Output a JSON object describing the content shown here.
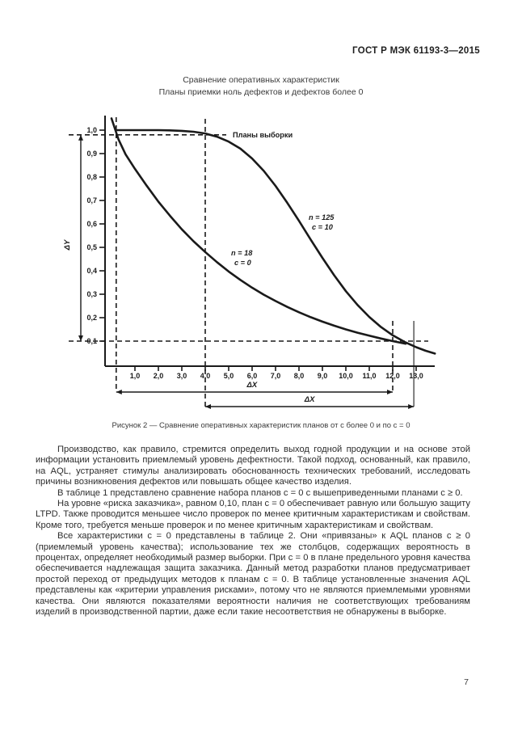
{
  "page": {
    "header": "ГОСТ Р МЭК 61193-3—2015",
    "page_number": "7"
  },
  "colors": {
    "ink": "#1a1a1a",
    "text": "#2d2d2d"
  },
  "figure": {
    "title_line1": "Сравнение оперативных характеристик",
    "title_line2": "Планы приемки ноль дефектов и дефектов более 0",
    "caption": "Рисунок 2 — Сравнение оперативных характеристик планов от с более 0 и по  с = 0"
  },
  "chart_data": {
    "type": "line",
    "title": "Сравнение оперативных характеристик. Планы приемки ноль дефектов и дефектов более 0",
    "xlabel": "ΔX",
    "ylabel": "ΔY",
    "xlim": [
      0,
      13.8
    ],
    "ylim": [
      0,
      1.05
    ],
    "grid": false,
    "x_tick_values": [
      1,
      2,
      3,
      4,
      5,
      6,
      7,
      8,
      9,
      10,
      11,
      12,
      13
    ],
    "x_tick_labels": [
      "1,0",
      "2,0",
      "3,0",
      "4,0",
      "5,0",
      "6,0",
      "7,0",
      "8,0",
      "9,0",
      "10,0",
      "11,0",
      "12,0",
      "13,0"
    ],
    "y_tick_values": [
      1.0,
      0.9,
      0.8,
      0.7,
      0.6,
      0.5,
      0.4,
      0.3,
      0.2,
      0.1
    ],
    "y_tick_labels": [
      "1,0",
      "0,9",
      "0,8",
      "0,7",
      "0,6",
      "0,5",
      "0,4",
      "0,3",
      "0,2",
      "0,1"
    ],
    "annotation_sampling_plans": "Планы выборки",
    "series": [
      {
        "name": "n = 18, c = 0",
        "label_lines": [
          "n = 18",
          "c = 0"
        ],
        "points": [
          [
            0,
            1.05
          ],
          [
            0.3,
            0.96
          ],
          [
            0.6,
            0.897
          ],
          [
            1,
            0.835
          ],
          [
            1.5,
            0.763
          ],
          [
            2,
            0.695
          ],
          [
            2.5,
            0.634
          ],
          [
            3,
            0.577
          ],
          [
            3.5,
            0.526
          ],
          [
            4,
            0.48
          ],
          [
            4.5,
            0.437
          ],
          [
            5,
            0.397
          ],
          [
            5.5,
            0.361
          ],
          [
            6,
            0.328
          ],
          [
            6.5,
            0.298
          ],
          [
            7,
            0.271
          ],
          [
            7.5,
            0.246
          ],
          [
            8,
            0.223
          ],
          [
            8.5,
            0.202
          ],
          [
            9,
            0.183
          ],
          [
            9.5,
            0.166
          ],
          [
            10,
            0.15
          ],
          [
            10.5,
            0.136
          ],
          [
            11,
            0.123
          ],
          [
            11.5,
            0.111
          ],
          [
            12,
            0.1
          ],
          [
            12.55,
            0.089
          ]
        ]
      },
      {
        "name": "n = 125, c = 10",
        "label_lines": [
          "n = 125",
          "c = 10"
        ],
        "points": [
          [
            0.25,
            1.0
          ],
          [
            1,
            1.0
          ],
          [
            2,
            1.0
          ],
          [
            2.5,
            0.999
          ],
          [
            3,
            0.997
          ],
          [
            3.5,
            0.993
          ],
          [
            4,
            0.986
          ],
          [
            4.5,
            0.972
          ],
          [
            5,
            0.951
          ],
          [
            5.5,
            0.921
          ],
          [
            6,
            0.879
          ],
          [
            6.5,
            0.826
          ],
          [
            7,
            0.762
          ],
          [
            7.5,
            0.69
          ],
          [
            8,
            0.613
          ],
          [
            8.5,
            0.533
          ],
          [
            9,
            0.455
          ],
          [
            9.5,
            0.381
          ],
          [
            10,
            0.313
          ],
          [
            10.5,
            0.254
          ],
          [
            11,
            0.203
          ],
          [
            11.5,
            0.16
          ],
          [
            12,
            0.125
          ],
          [
            12.5,
            0.097
          ],
          [
            13,
            0.074
          ],
          [
            13.4,
            0.059
          ],
          [
            13.8,
            0.047
          ]
        ]
      }
    ],
    "reference_lines": {
      "v_dashed": [
        0.2,
        4.0,
        12.0
      ],
      "v_solid": [
        12.9
      ],
      "h_dashed": [
        0.98,
        0.1
      ]
    },
    "dim_arrows": [
      {
        "label": "ΔX",
        "from": 0.2,
        "to": 12.0
      },
      {
        "label": "ΔX",
        "from": 4.0,
        "to": 12.9
      },
      {
        "label": "ΔY",
        "from": 0.98,
        "to": 0.1
      }
    ]
  },
  "body": {
    "paragraphs": [
      "Производство, как правило, стремится определить выход годной продукции и на основе этой информации установить приемлемый уровень дефектности. Такой подход, основанный, как правило, на AQL, устраняет стимулы анализировать обоснованность технических требований, исследовать причины возникновения дефектов или повышать общее качество изделия.",
      "В таблице 1 представлено сравнение набора планов c = 0 с вышеприведенными планами c ≥ 0.",
      "На уровне «риска заказчика», равном 0,10, план c = 0 обеспечивает равную или большую защиту LTPD. Также проводится меньшее число проверок по менее критичным характеристикам и свойствам. Кроме того, требуется меньше проверок и по менее критичным характеристикам и свойствам.",
      "Все характеристики c = 0 представлены в таблице 2. Они «привязаны» к AQL планов c ≥ 0 (приемлемый уровень качества); использование тех же столбцов, содержащих вероятность в процентах, определяет необходимый размер выборки. При c = 0 в плане предельного уровня качества обеспечивается надлежащая защита заказчика. Данный метод разработки планов предусматривает простой переход от предыдущих методов к планам c = 0. В таблице установленные значения AQL представлены как «критерии управления рисками», потому что не являются приемлемыми уровнями качества. Они являются показателями вероятности наличия не соответствующих требованиям изделий в производственной партии, даже если такие несоответствия не обнаружены в выборке."
    ]
  }
}
